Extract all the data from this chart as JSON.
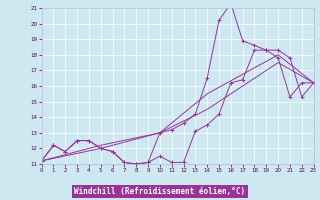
{
  "xlabel": "Windchill (Refroidissement éolien,°C)",
  "bg_color": "#cde8f0",
  "grid_color": "#ffffff",
  "line_color": "#993399",
  "xlabel_bg": "#9933aa",
  "xlabel_fg": "#ffffff",
  "xmin": 0,
  "xmax": 23,
  "ymin": 11,
  "ymax": 21,
  "line1_x": [
    0,
    1,
    2,
    3,
    4,
    5,
    6,
    7,
    8,
    9,
    10,
    11,
    12,
    13,
    14,
    15,
    16,
    17,
    18,
    19,
    20,
    21,
    22,
    23
  ],
  "line1_y": [
    11.2,
    12.2,
    11.8,
    12.5,
    12.5,
    12.0,
    11.8,
    11.1,
    11.0,
    11.1,
    11.5,
    11.1,
    11.1,
    13.1,
    13.5,
    14.2,
    16.2,
    16.4,
    18.3,
    18.3,
    17.8,
    15.3,
    16.2,
    16.2
  ],
  "line2_x": [
    0,
    1,
    2,
    3,
    4,
    5,
    6,
    7,
    8,
    9,
    10,
    11,
    12,
    13,
    14,
    15,
    16,
    17,
    18,
    19,
    20,
    21,
    22,
    23
  ],
  "line2_y": [
    11.2,
    12.2,
    11.8,
    12.5,
    12.5,
    12.0,
    11.8,
    11.1,
    11.0,
    11.1,
    13.0,
    13.2,
    13.6,
    14.2,
    16.5,
    20.2,
    21.3,
    18.9,
    18.6,
    18.3,
    18.3,
    17.8,
    15.3,
    16.2
  ],
  "line3_x": [
    0,
    23
  ],
  "line3_y": [
    11.2,
    16.2
  ],
  "line4_x": [
    0,
    23
  ],
  "line4_y": [
    11.2,
    16.2
  ],
  "line3_pts_x": [
    0,
    5,
    10,
    14,
    20,
    23
  ],
  "line3_pts_y": [
    11.2,
    12.2,
    13.0,
    15.5,
    18.0,
    16.2
  ],
  "line4_pts_x": [
    0,
    5,
    10,
    14,
    20,
    23
  ],
  "line4_pts_y": [
    11.2,
    12.0,
    13.0,
    14.5,
    17.5,
    16.2
  ]
}
